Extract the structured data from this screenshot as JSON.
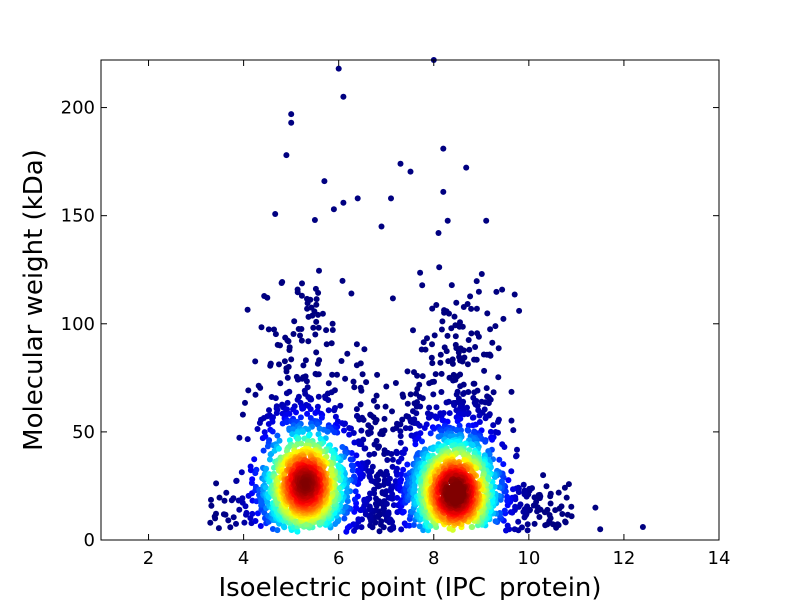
{
  "chart_data": {
    "type": "scatter",
    "title": "",
    "xlabel": "Isoelectric point (IPC_protein)",
    "ylabel": "Molecular weight (kDa)",
    "xlim": [
      1,
      14
    ],
    "ylim": [
      0,
      222
    ],
    "xticks": [
      2,
      4,
      6,
      8,
      10,
      12,
      14
    ],
    "yticks": [
      0,
      50,
      100,
      150,
      200
    ],
    "grid": false,
    "colormap": "jet (point density)",
    "clusters": [
      {
        "name": "acidic",
        "center_x": 5.3,
        "center_y": 26,
        "peak_density": "high"
      },
      {
        "name": "basic",
        "center_x": 8.5,
        "center_y": 22,
        "peak_density": "high"
      }
    ],
    "notable_points": [
      {
        "x": 6.0,
        "y": 218
      },
      {
        "x": 6.1,
        "y": 205
      },
      {
        "x": 8.0,
        "y": 222
      },
      {
        "x": 5.0,
        "y": 197
      },
      {
        "x": 5.0,
        "y": 193
      },
      {
        "x": 4.9,
        "y": 178
      },
      {
        "x": 8.2,
        "y": 181
      },
      {
        "x": 7.3,
        "y": 174
      },
      {
        "x": 5.7,
        "y": 166
      },
      {
        "x": 8.2,
        "y": 161
      },
      {
        "x": 6.4,
        "y": 158
      },
      {
        "x": 7.1,
        "y": 158
      },
      {
        "x": 6.1,
        "y": 156
      },
      {
        "x": 5.9,
        "y": 153
      },
      {
        "x": 5.5,
        "y": 148
      },
      {
        "x": 6.9,
        "y": 145
      },
      {
        "x": 8.1,
        "y": 142
      },
      {
        "x": 12.4,
        "y": 6
      },
      {
        "x": 11.5,
        "y": 5
      },
      {
        "x": 11.4,
        "y": 15
      },
      {
        "x": 10.9,
        "y": 11
      },
      {
        "x": 10.3,
        "y": 30
      },
      {
        "x": 3.3,
        "y": 8
      },
      {
        "x": 3.4,
        "y": 10
      }
    ],
    "colors": {
      "low_density": "#00008f",
      "mid_density": "#00ffff",
      "high_density": "#ffff00",
      "peak_density": "#8f0000"
    }
  }
}
